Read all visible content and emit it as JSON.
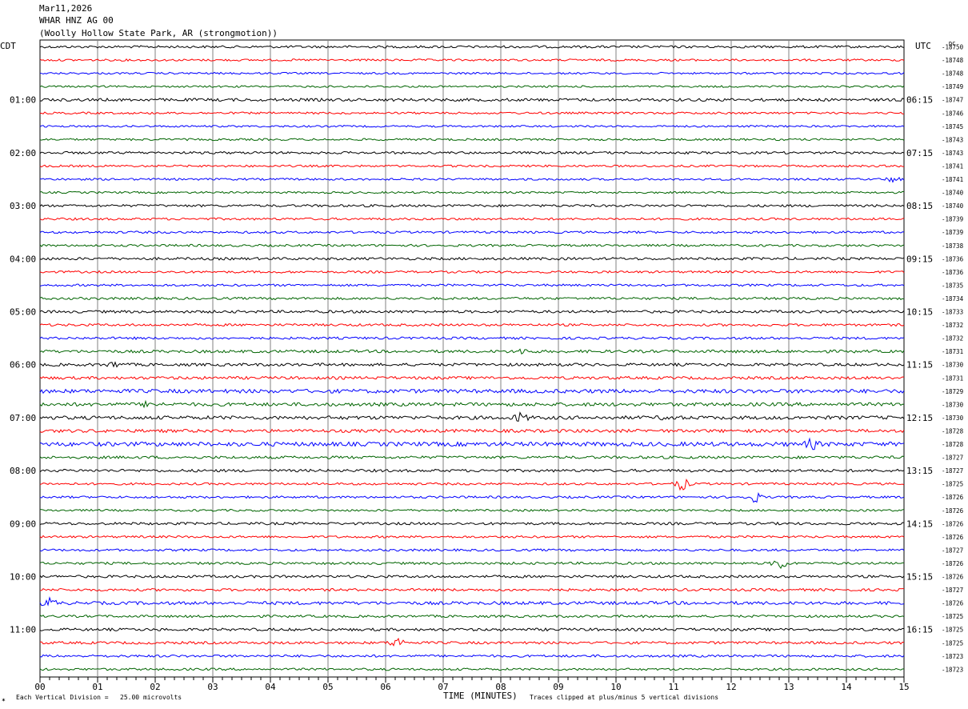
{
  "header": {
    "date": "Mar11,2026",
    "station": "WHAR HNZ AG 00",
    "location": "(Woolly Hollow State Park, AR (strongmotion))"
  },
  "left_axis_title": "CDT",
  "right_axis_title": "UTC",
  "right_corner_label": "DC",
  "footer": {
    "scale_note": "Each Vertical Division =   25.00 microvolts",
    "x_title": "TIME (MINUTES)",
    "clip_note": "Traces clipped at plus/minus 5 vertical divisions"
  },
  "colors": {
    "trace_cycle": [
      "#000000",
      "#ff0000",
      "#0000ff",
      "#006400"
    ],
    "grid": "#808080",
    "background": "#ffffff"
  },
  "chart_data": {
    "type": "line",
    "subtype": "helicorder",
    "x_label": "TIME (MINUTES)",
    "x_range": [
      0,
      15
    ],
    "x_ticks": [
      "00",
      "01",
      "02",
      "03",
      "04",
      "05",
      "06",
      "07",
      "08",
      "09",
      "10",
      "11",
      "12",
      "13",
      "14",
      "15"
    ],
    "trace_count": 48,
    "left_time_labels": [
      "01:00",
      "02:00",
      "03:00",
      "04:00",
      "05:00",
      "06:00",
      "07:00",
      "08:00",
      "09:00",
      "10:00",
      "11:00"
    ],
    "right_time_labels": [
      "06:15",
      "07:15",
      "08:15",
      "09:15",
      "10:15",
      "11:15",
      "12:15",
      "13:15",
      "14:15",
      "15:15",
      "16:15"
    ],
    "time_label_trace_indices": [
      4,
      8,
      12,
      16,
      20,
      24,
      28,
      32,
      36,
      40,
      44
    ],
    "dc_offsets": [
      "-18750",
      "-18748",
      "-18748",
      "-18749",
      "-18747",
      "-18746",
      "-18745",
      "-18743",
      "-18743",
      "-18741",
      "-18741",
      "-18740",
      "-18740",
      "-18739",
      "-18739",
      "-18738",
      "-18736",
      "-18736",
      "-18735",
      "-18734",
      "-18733",
      "-18732",
      "-18732",
      "-18731",
      "-18730",
      "-18731",
      "-18729",
      "-18730",
      "-18730",
      "-18728",
      "-18728",
      "-18727",
      "-18727",
      "-18725",
      "-18726",
      "-18726",
      "-18726",
      "-18726",
      "-18727",
      "-18726",
      "-18726",
      "-18727",
      "-18726",
      "-18725",
      "-18725",
      "-18725",
      "-18723",
      "-18723"
    ],
    "trace_noise_level": [
      1.5,
      1.3,
      1.2,
      1.2,
      1.8,
      1.3,
      1.2,
      1.3,
      1.5,
      1.3,
      1.3,
      1.2,
      1.5,
      1.4,
      1.4,
      1.4,
      1.6,
      1.4,
      1.4,
      1.5,
      1.7,
      1.5,
      1.5,
      1.8,
      1.8,
      1.8,
      2.4,
      2.2,
      2.2,
      2.0,
      2.6,
      1.7,
      1.7,
      1.4,
      1.4,
      1.3,
      1.6,
      1.4,
      1.4,
      1.5,
      1.6,
      1.6,
      2.0,
      1.5,
      1.7,
      1.6,
      1.5,
      1.4
    ],
    "events": [
      {
        "trace": 28,
        "minute": 8.35,
        "amplitude": 5
      },
      {
        "trace": 28,
        "minute": 10.9,
        "amplitude": 2.5
      },
      {
        "trace": 30,
        "minute": 13.4,
        "amplitude": 5
      },
      {
        "trace": 33,
        "minute": 11.15,
        "amplitude": 7
      },
      {
        "trace": 34,
        "minute": 12.4,
        "amplitude": 6
      },
      {
        "trace": 39,
        "minute": 12.85,
        "amplitude": 7
      },
      {
        "trace": 42,
        "minute": 0.15,
        "amplitude": 6
      },
      {
        "trace": 45,
        "minute": 6.2,
        "amplitude": 6
      },
      {
        "trace": 24,
        "minute": 1.3,
        "amplitude": 3
      },
      {
        "trace": 27,
        "minute": 1.9,
        "amplitude": 3
      },
      {
        "trace": 23,
        "minute": 8.4,
        "amplitude": 3
      },
      {
        "trace": 10,
        "minute": 14.8,
        "amplitude": 3
      }
    ]
  }
}
